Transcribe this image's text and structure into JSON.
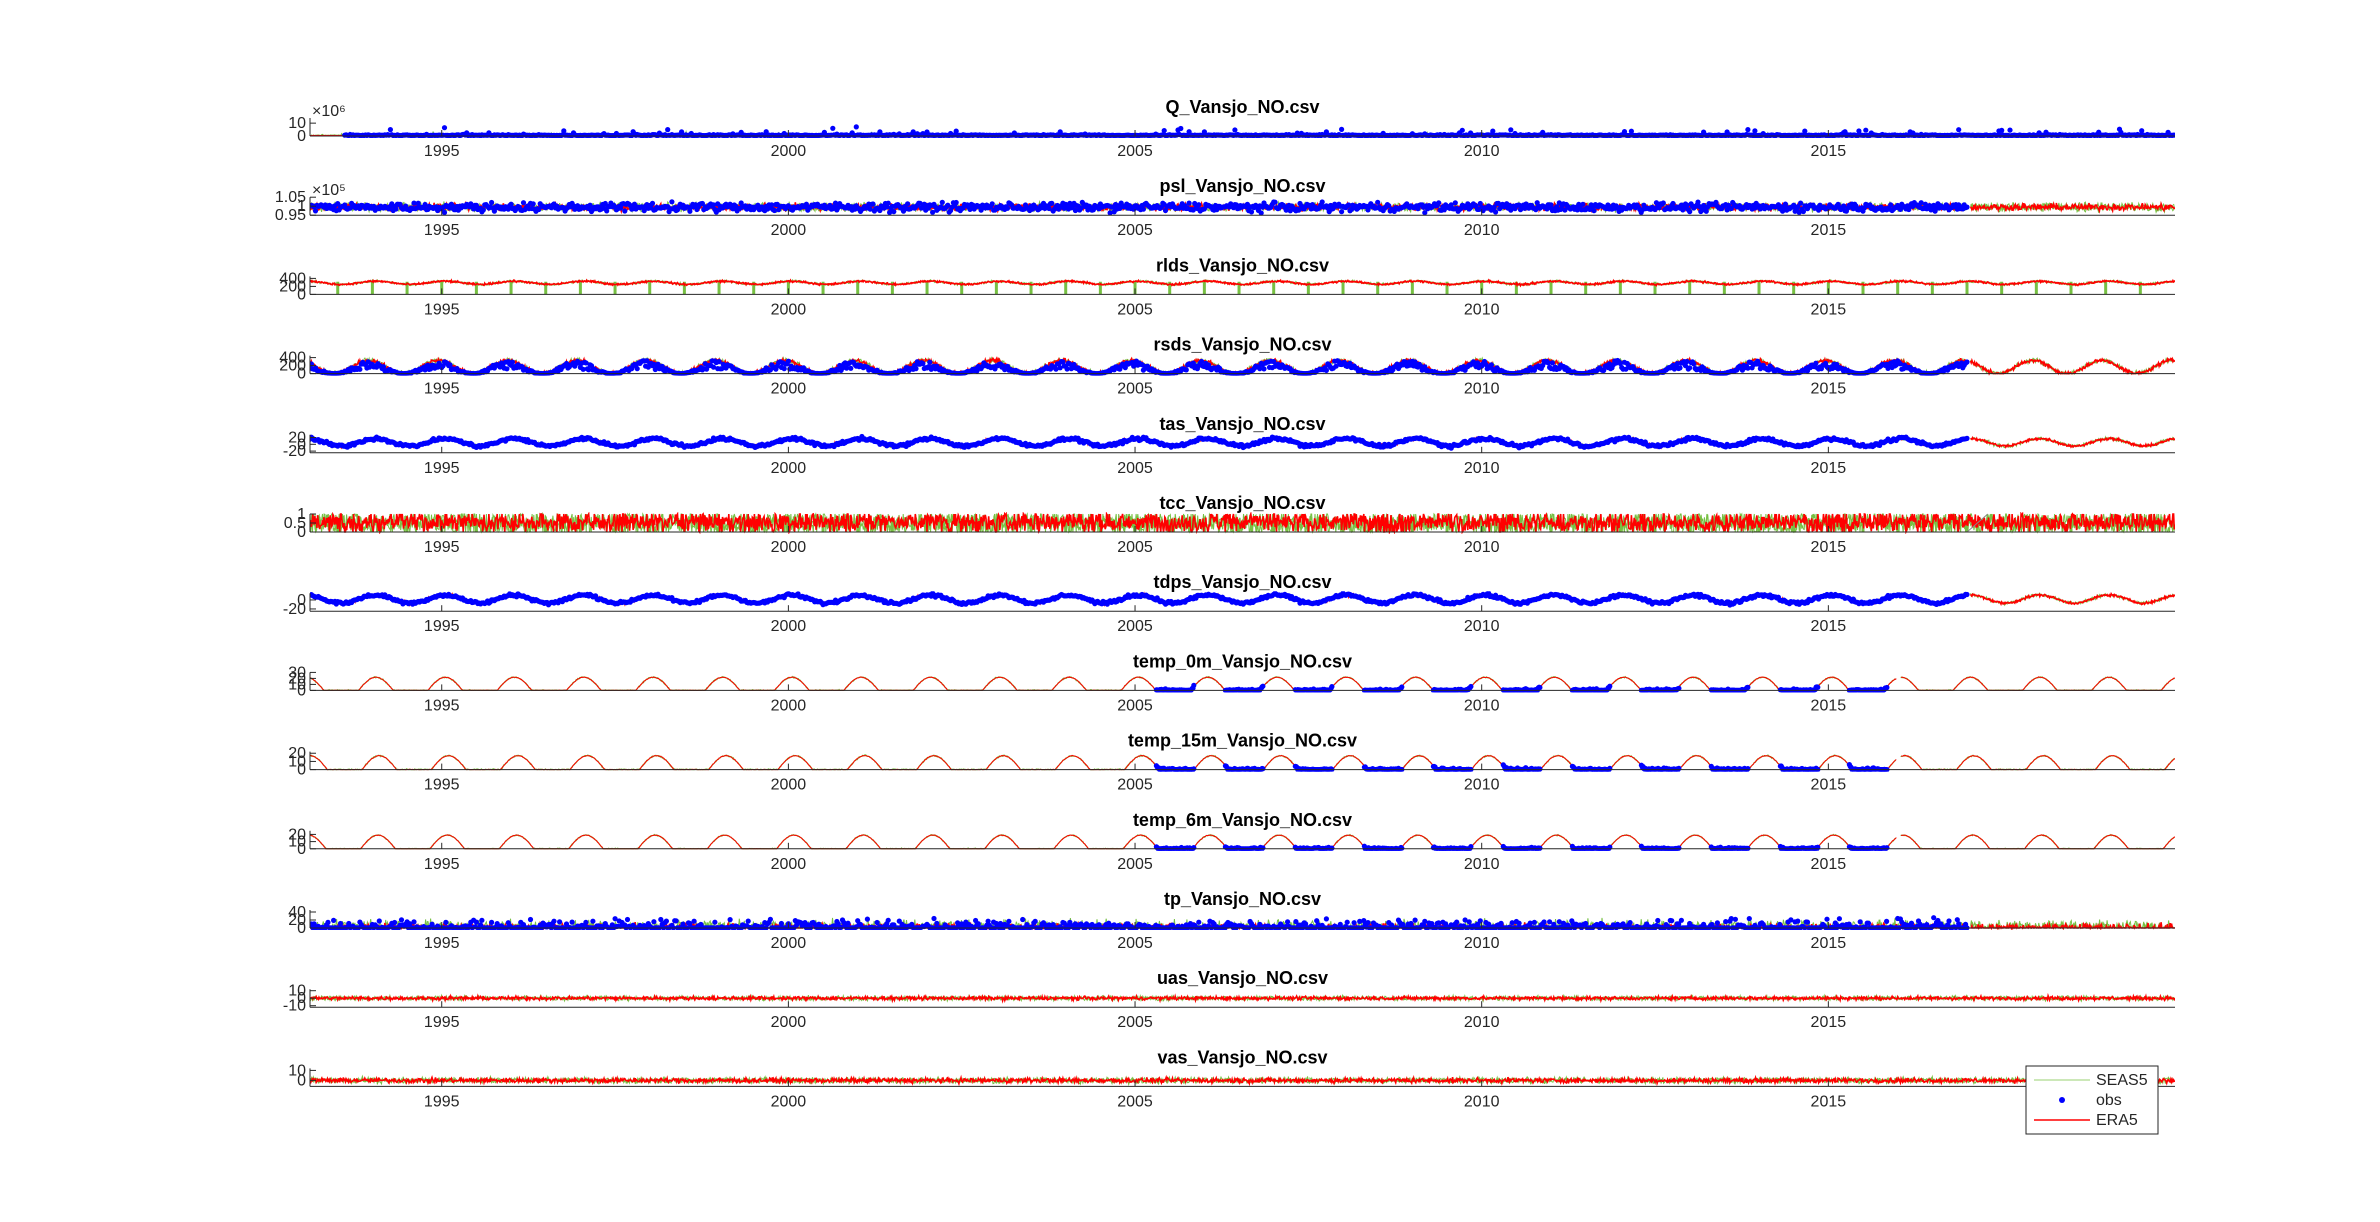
{
  "chart_data": {
    "type": "line",
    "x_ticks": [
      1995,
      2000,
      2005,
      2010,
      2015
    ],
    "legend": {
      "placement": "bottom-right",
      "entries": [
        "SEAS5",
        "obs",
        "ERA5"
      ]
    },
    "series_colors": {
      "SEAS5": "#77c043",
      "obs": "#0000ff",
      "ERA5": "#ff0000"
    },
    "panels": [
      {
        "title": "Q_Vansjo_NO.csv",
        "xlim": [
          1993.1,
          2020.0
        ],
        "ylim": [
          0,
          14
        ],
        "yticks": [
          "10",
          "0"
        ],
        "ytick_values": [
          10,
          0
        ],
        "exponent": "×10⁶",
        "obs_range": [
          1993.6,
          2020.0
        ],
        "forecast_range": [
          2017.0,
          2020.0
        ],
        "model": "spiky",
        "base": 0.3,
        "amp": 1.5,
        "noise": 0.5,
        "phase": 0
      },
      {
        "title": "psl_Vansjo_NO.csv",
        "xlim": [
          1993.1,
          2020.0
        ],
        "ylim": [
          0.95,
          1.05
        ],
        "yticks": [
          "1.05",
          "1",
          "0.95"
        ],
        "ytick_values": [
          1.05,
          1.0,
          0.95
        ],
        "exponent": "×10⁵",
        "obs_range": [
          1993.1,
          2017.0
        ],
        "forecast_range": [
          2017.0,
          2020.0
        ],
        "model": "noise",
        "base": 0.995,
        "amp": 0,
        "noise": 0.02,
        "phase": 0
      },
      {
        "title": "rlds_Vansjo_NO.csv",
        "xlim": [
          1993.1,
          2020.0
        ],
        "ylim": [
          0,
          450
        ],
        "yticks": [
          "400",
          "200",
          "0"
        ],
        "ytick_values": [
          400,
          200,
          0
        ],
        "obs_range": null,
        "forecast_range": [
          2017.0,
          2020.0
        ],
        "model": "seasonal",
        "base": 290,
        "amp": 40,
        "noise": 25,
        "phase": 0.55
      },
      {
        "title": "rsds_Vansjo_NO.csv",
        "xlim": [
          1993.1,
          2020.0
        ],
        "ylim": [
          0,
          450
        ],
        "yticks": [
          "400",
          "200",
          "0"
        ],
        "ytick_values": [
          400,
          200,
          0
        ],
        "obs_range": [
          1993.1,
          2017.0
        ],
        "forecast_range": [
          2017.0,
          2020.0
        ],
        "model": "solar",
        "base": 0,
        "amp": 330,
        "noise": 50,
        "phase": 0.45
      },
      {
        "title": "tas_Vansjo_NO.csv",
        "xlim": [
          1993.1,
          2020.0
        ],
        "ylim": [
          -25,
          28
        ],
        "yticks": [
          "20",
          "0",
          "-20"
        ],
        "ytick_values": [
          20,
          0,
          -20
        ],
        "obs_range": [
          1993.1,
          2017.0
        ],
        "forecast_range": [
          2017.0,
          2020.0
        ],
        "model": "seasonal",
        "base": 6,
        "amp": 11,
        "noise": 4,
        "phase": 0.55
      },
      {
        "title": "tcc_Vansjo_NO.csv",
        "xlim": [
          1993.1,
          2020.0
        ],
        "ylim": [
          0,
          1
        ],
        "yticks": [
          "1",
          "0.5",
          "0"
        ],
        "ytick_values": [
          1,
          0.5,
          0
        ],
        "obs_range": null,
        "forecast_range": [
          2017.0,
          2020.0
        ],
        "model": "bounded",
        "base": 0.7,
        "amp": 0,
        "noise": 0.3,
        "phase": 0
      },
      {
        "title": "tdps_Vansjo_NO.csv",
        "xlim": [
          1993.1,
          2020.0
        ],
        "ylim": [
          -25,
          15
        ],
        "yticks": [
          "0",
          "-20"
        ],
        "ytick_values": [
          0,
          -20
        ],
        "obs_range": [
          1993.1,
          2017.0
        ],
        "forecast_range": [
          2017.0,
          2020.0
        ],
        "model": "seasonal",
        "base": 2,
        "amp": 9,
        "noise": 3,
        "phase": 0.55
      },
      {
        "title": "temp_0m_Vansjo_NO.csv",
        "xlim": [
          1993.1,
          2020.0
        ],
        "ylim": [
          0,
          30
        ],
        "yticks": [
          "30",
          "20",
          "10",
          "0"
        ],
        "ytick_values": [
          30,
          20,
          10,
          0
        ],
        "obs_range": [
          2005.2,
          2016.0
        ],
        "forecast_range": [
          2016.0,
          2020.0
        ],
        "model": "lake",
        "base": 0,
        "amp": 22,
        "noise": 2,
        "phase": 0.55
      },
      {
        "title": "temp_15m_Vansjo_NO.csv",
        "xlim": [
          1993.1,
          2020.0
        ],
        "ylim": [
          0,
          22
        ],
        "yticks": [
          "20",
          "10",
          "0"
        ],
        "ytick_values": [
          20,
          10,
          0
        ],
        "obs_range": [
          2005.2,
          2016.0
        ],
        "forecast_range": [
          2016.0,
          2020.0
        ],
        "model": "lake",
        "base": 0,
        "amp": 17,
        "noise": 1.5,
        "phase": 0.6
      },
      {
        "title": "temp_6m_Vansjo_NO.csv",
        "xlim": [
          1993.1,
          2020.0
        ],
        "ylim": [
          0,
          25
        ],
        "yticks": [
          "20",
          "10",
          "0"
        ],
        "ytick_values": [
          20,
          10,
          0
        ],
        "obs_range": [
          2005.2,
          2016.0
        ],
        "forecast_range": [
          2016.0,
          2020.0
        ],
        "model": "lake",
        "base": 0,
        "amp": 19,
        "noise": 1.5,
        "phase": 0.58
      },
      {
        "title": "tp_Vansjo_NO.csv",
        "xlim": [
          1993.1,
          2020.0
        ],
        "ylim": [
          0,
          45
        ],
        "yticks": [
          "40",
          "20",
          "0"
        ],
        "ytick_values": [
          40,
          20,
          0
        ],
        "obs_range": [
          1993.1,
          2017.0
        ],
        "forecast_range": [
          2017.0,
          2020.0
        ],
        "model": "precip",
        "base": 2,
        "amp": 0,
        "noise": 8,
        "phase": 0
      },
      {
        "title": "uas_Vansjo_NO.csv",
        "xlim": [
          1993.1,
          2020.0
        ],
        "ylim": [
          -12,
          12
        ],
        "yticks": [
          "10",
          "0",
          "-10"
        ],
        "ytick_values": [
          10,
          0,
          -10
        ],
        "obs_range": null,
        "forecast_range": [
          2017.0,
          2020.0
        ],
        "model": "noise",
        "base": 0,
        "amp": 0,
        "noise": 2.5,
        "phase": 0
      },
      {
        "title": "vas_Vansjo_NO.csv",
        "xlim": [
          1993.1,
          2020.0
        ],
        "ylim": [
          -6,
          12
        ],
        "yticks": [
          "10",
          "0"
        ],
        "ytick_values": [
          10,
          0
        ],
        "obs_range": null,
        "forecast_range": [
          2017.0,
          2020.0
        ],
        "model": "noise",
        "base": 0,
        "amp": 0,
        "noise": 2.5,
        "phase": 0
      }
    ]
  }
}
